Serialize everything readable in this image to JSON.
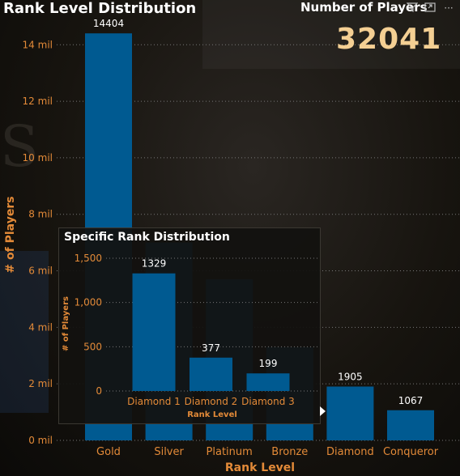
{
  "header": {
    "title": "Rank Level Distribution",
    "kpi_label": "Number of Players",
    "kpi_value": "32041",
    "icons": [
      "filter-icon",
      "focus-mode-icon",
      "more-options-icon"
    ]
  },
  "colors": {
    "bar": "#005a91",
    "axis_text": "#e38a38",
    "kpi": "#f4cf93",
    "grid": "#777"
  },
  "chart_data": [
    {
      "type": "bar",
      "title": "Rank Level Distribution",
      "xlabel": "Rank Level",
      "ylabel": "# of Players",
      "categories": [
        "Gold",
        "Silver",
        "Platinum",
        "Bronze",
        "Diamond",
        "Conqueror"
      ],
      "values": [
        14404,
        7000,
        5700,
        3300,
        1905,
        1067
      ],
      "data_labels": [
        "14404",
        "",
        "",
        "",
        "1905",
        "1067"
      ],
      "ylim": [
        0,
        15000
      ],
      "yticks": [
        0,
        2000,
        4000,
        6000,
        8000,
        10000,
        12000,
        14000
      ],
      "ytick_labels": [
        "0 mil",
        "2 mil",
        "4 mil",
        "6 mil",
        "8 mil",
        "10 mil",
        "12 mil",
        "14 mil"
      ],
      "grid": true,
      "legend": "none"
    },
    {
      "type": "bar",
      "title": "Specific Rank Distribution",
      "xlabel": "Rank Level",
      "ylabel": "# of Players",
      "categories": [
        "Diamond 1",
        "Diamond 2",
        "Diamond 3"
      ],
      "values": [
        1329,
        377,
        199
      ],
      "data_labels": [
        "1329",
        "377",
        "199"
      ],
      "ylim": [
        0,
        1500
      ],
      "yticks": [
        0,
        500,
        1000,
        1500
      ],
      "ytick_labels": [
        "0",
        "500",
        "1,000",
        "1,500"
      ],
      "grid": true,
      "legend": "none"
    }
  ]
}
